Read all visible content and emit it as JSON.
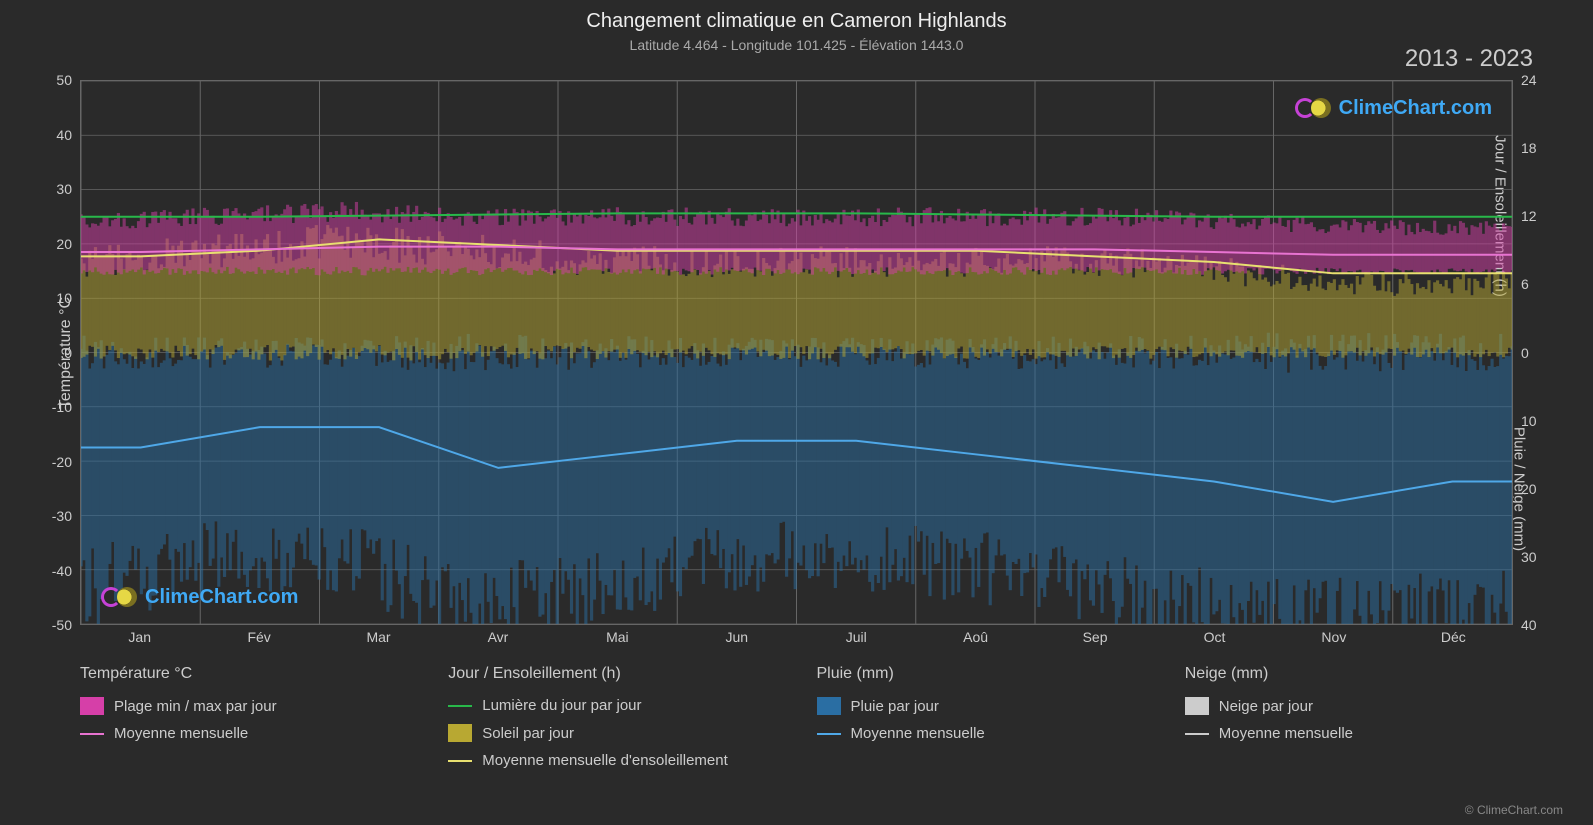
{
  "title": "Changement climatique en Cameron Highlands",
  "subtitle": "Latitude 4.464 - Longitude 101.425 - Élévation 1443.0",
  "date_range": "2013 - 2023",
  "copyright": "© ClimeChart.com",
  "watermark_text": "ClimeChart.com",
  "watermark_color": "#3fa9f5",
  "logo_c_color": "#c642d6",
  "logo_sun_color": "#e6d845",
  "background_color": "#2a2a2a",
  "grid_color": "#666666",
  "axis_left": {
    "label": "Température °C",
    "min": -50,
    "max": 50,
    "step": 10,
    "ticks": [
      -50,
      -40,
      -30,
      -20,
      -10,
      0,
      10,
      20,
      30,
      40,
      50
    ]
  },
  "axis_right_top": {
    "label": "Jour / Ensoleillement (h)",
    "min": 0,
    "max": 24,
    "step": 6,
    "ticks": [
      0,
      6,
      12,
      18,
      24
    ]
  },
  "axis_right_bottom": {
    "label": "Pluie / Neige (mm)",
    "min": 0,
    "max": 40,
    "step": 10,
    "ticks": [
      0,
      10,
      20,
      30,
      40
    ]
  },
  "months": [
    "Jan",
    "Fév",
    "Mar",
    "Avr",
    "Mai",
    "Jun",
    "Juil",
    "Aoû",
    "Sep",
    "Oct",
    "Nov",
    "Déc"
  ],
  "series": {
    "temp_range_band": {
      "color": "#d63fa8",
      "opacity": 0.5,
      "min_values": [
        15,
        15,
        15,
        15,
        15,
        15,
        15,
        15,
        15,
        15,
        15,
        15
      ],
      "max_values": [
        24,
        25,
        26,
        25,
        25,
        25,
        25,
        25,
        25,
        24,
        23,
        23
      ]
    },
    "temp_mean_line": {
      "color": "#e873d1",
      "width": 2,
      "values": [
        18.5,
        19,
        19.5,
        19.5,
        19,
        19,
        19,
        19,
        19,
        18.5,
        18,
        18
      ]
    },
    "daylight_line": {
      "color": "#28b84a",
      "width": 2,
      "values": [
        12,
        12,
        12.1,
        12.2,
        12.3,
        12.3,
        12.3,
        12.2,
        12.1,
        12,
        12,
        12
      ]
    },
    "sun_band": {
      "color": "#b8a832",
      "opacity": 0.5,
      "min_values": [
        0,
        0,
        0,
        0,
        0,
        0,
        0,
        0,
        0,
        0,
        0,
        0
      ],
      "max_values": [
        8,
        9,
        10,
        9,
        8,
        8,
        8,
        8,
        8,
        7,
        6,
        6
      ]
    },
    "sun_mean_line": {
      "color": "#e8e070",
      "width": 2,
      "values": [
        8.5,
        9,
        10,
        9.5,
        9,
        9,
        9,
        9,
        8.5,
        8,
        7,
        7
      ]
    },
    "rain_band": {
      "color": "#2a6ea3",
      "opacity": 0.5,
      "min_values": [
        0,
        0,
        0,
        0,
        0,
        0,
        0,
        0,
        0,
        0,
        0,
        0
      ],
      "max_values": [
        35,
        30,
        30,
        38,
        35,
        30,
        30,
        32,
        36,
        40,
        40,
        38
      ]
    },
    "rain_mean_line": {
      "color": "#4fa8e8",
      "width": 2,
      "values": [
        14,
        11,
        11,
        17,
        15,
        13,
        13,
        15,
        17,
        19,
        22,
        19
      ]
    }
  },
  "legend": {
    "col1": {
      "header": "Température °C",
      "items": [
        {
          "type": "box",
          "color": "#d63fa8",
          "label": "Plage min / max par jour"
        },
        {
          "type": "line",
          "color": "#e873d1",
          "label": "Moyenne mensuelle"
        }
      ]
    },
    "col2": {
      "header": "Jour / Ensoleillement (h)",
      "items": [
        {
          "type": "line",
          "color": "#28b84a",
          "label": "Lumière du jour par jour"
        },
        {
          "type": "box",
          "color": "#b8a832",
          "label": "Soleil par jour"
        },
        {
          "type": "line",
          "color": "#e8e070",
          "label": "Moyenne mensuelle d'ensoleillement"
        }
      ]
    },
    "col3": {
      "header": "Pluie (mm)",
      "items": [
        {
          "type": "box",
          "color": "#2a6ea3",
          "label": "Pluie par jour"
        },
        {
          "type": "line",
          "color": "#4fa8e8",
          "label": "Moyenne mensuelle"
        }
      ]
    },
    "col4": {
      "header": "Neige (mm)",
      "items": [
        {
          "type": "box",
          "color": "#cccccc",
          "label": "Neige par jour"
        },
        {
          "type": "line",
          "color": "#cccccc",
          "label": "Moyenne mensuelle"
        }
      ]
    }
  }
}
